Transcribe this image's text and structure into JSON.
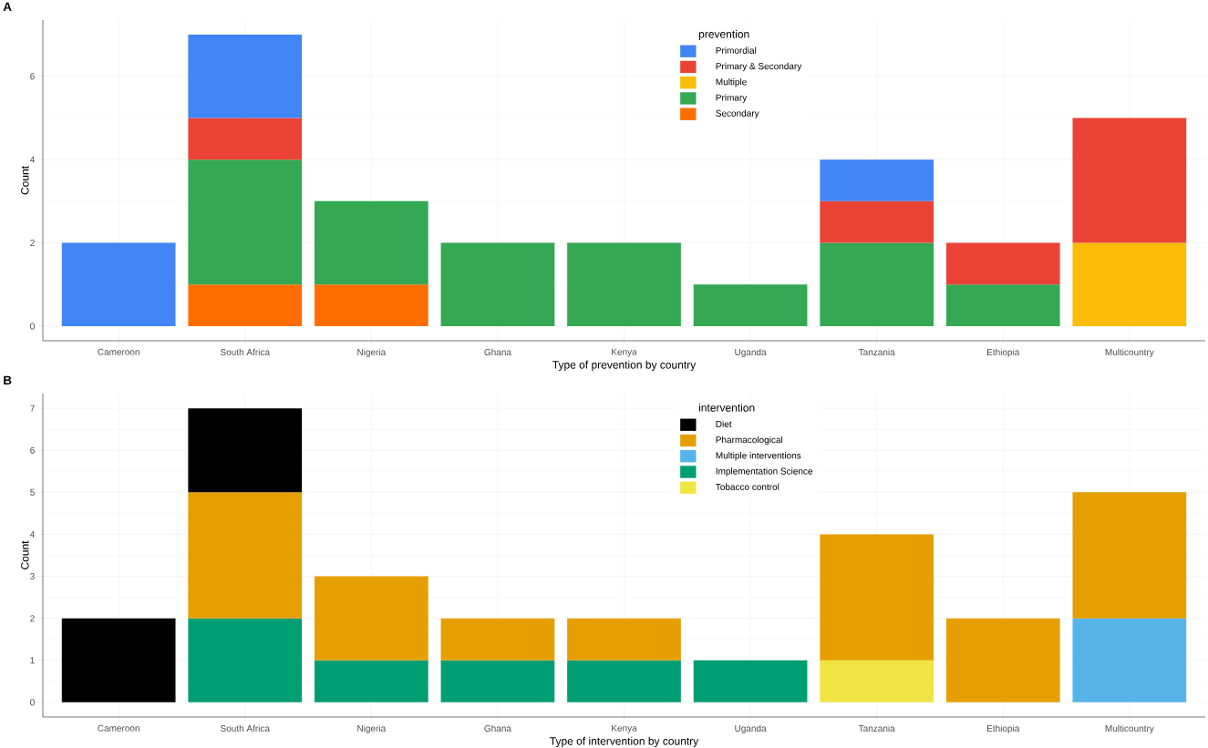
{
  "chart_data": [
    {
      "type": "bar",
      "title": "A",
      "xlabel": "Type of prevention by country",
      "ylabel": "Count",
      "legend_title": "prevention",
      "stacked": true,
      "grid": true,
      "legend": "top",
      "categories": [
        "Cameroon",
        "South Africa",
        "Nigeria",
        "Ghana",
        "Kenya",
        "Uganda",
        "Tanzania",
        "Ethiopia",
        "Multicountry"
      ],
      "ylim": [
        -0.35,
        7.35
      ],
      "yticks": [
        0,
        2,
        4,
        6
      ],
      "series": [
        {
          "name": "Secondary",
          "color": "#ff6d01",
          "values": [
            null,
            1,
            1,
            null,
            null,
            null,
            null,
            null,
            null
          ]
        },
        {
          "name": "Primary",
          "color": "#34a853",
          "values": [
            null,
            3,
            2,
            2,
            2,
            1,
            2,
            1,
            null
          ]
        },
        {
          "name": "Multiple",
          "color": "#fbbc05",
          "values": [
            null,
            null,
            null,
            null,
            null,
            null,
            null,
            null,
            2
          ]
        },
        {
          "name": "Primary & Secondary",
          "color": "#ea4335",
          "values": [
            null,
            1,
            null,
            null,
            null,
            null,
            1,
            1,
            3
          ]
        },
        {
          "name": "Primordial",
          "color": "#4285f4",
          "values": [
            2,
            2,
            null,
            null,
            null,
            null,
            1,
            null,
            null
          ]
        }
      ]
    },
    {
      "type": "bar",
      "title": "B",
      "xlabel": "Type of intervention by country",
      "ylabel": "Count",
      "legend_title": "intervention",
      "stacked": true,
      "grid": true,
      "legend": "top",
      "categories": [
        "Cameroon",
        "South Africa",
        "Nigeria",
        "Ghana",
        "Kenya",
        "Uganda",
        "Tanzania",
        "Ethiopia",
        "Multicountry"
      ],
      "ylim": [
        -0.35,
        7.35
      ],
      "yticks": [
        0,
        1,
        2,
        3,
        4,
        5,
        6,
        7
      ],
      "series": [
        {
          "name": "Tobacco control",
          "color": "#f0e442",
          "values": [
            null,
            null,
            null,
            null,
            null,
            null,
            1,
            null,
            null
          ]
        },
        {
          "name": "Implementation Science",
          "color": "#009e73",
          "values": [
            null,
            2,
            1,
            1,
            1,
            1,
            null,
            null,
            null
          ]
        },
        {
          "name": "Multiple interventions",
          "color": "#56b4e9",
          "values": [
            null,
            null,
            null,
            null,
            null,
            null,
            null,
            null,
            2
          ]
        },
        {
          "name": "Pharmacological",
          "color": "#e69f00",
          "values": [
            null,
            3,
            2,
            1,
            1,
            null,
            3,
            2,
            3
          ]
        },
        {
          "name": "Diet",
          "color": "#000000",
          "values": [
            2,
            2,
            null,
            null,
            null,
            null,
            null,
            null,
            null
          ]
        }
      ]
    }
  ]
}
